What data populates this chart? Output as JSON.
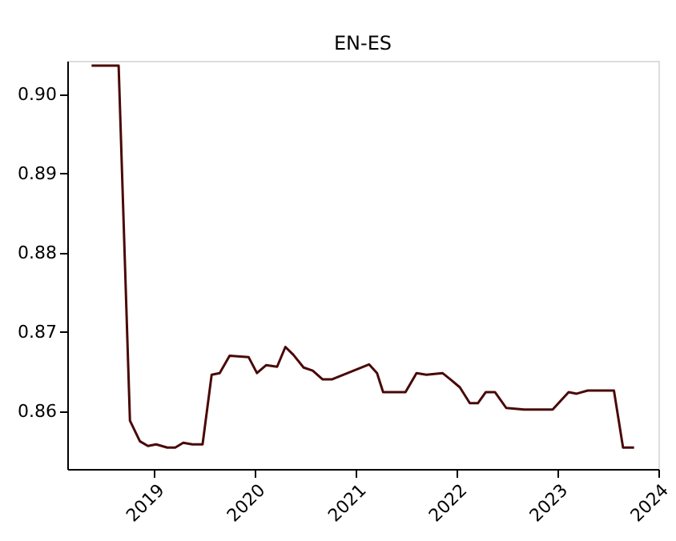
{
  "chart_data": {
    "type": "line",
    "title": "EN-ES",
    "x": [
      "2018-05-19",
      "2018-08-25",
      "2018-10-05",
      "2018-11-10",
      "2018-12-09",
      "2019-01-08",
      "2019-02-17",
      "2019-03-18",
      "2019-04-16",
      "2019-05-19",
      "2019-06-25",
      "2019-07-28",
      "2019-08-26",
      "2019-10-01",
      "2019-12-09",
      "2020-01-08",
      "2020-02-10",
      "2020-03-21",
      "2020-04-20",
      "2020-05-19",
      "2020-06-25",
      "2020-07-28",
      "2020-09-02",
      "2020-10-05",
      "2021-02-17",
      "2021-03-18",
      "2021-04-09",
      "2021-06-29",
      "2021-08-08",
      "2021-09-13",
      "2021-11-10",
      "2021-12-09",
      "2022-01-12",
      "2022-02-17",
      "2022-03-18",
      "2022-04-16",
      "2022-05-19",
      "2022-06-29",
      "2022-09-02",
      "2022-12-14",
      "2023-02-10",
      "2023-03-11",
      "2023-04-20",
      "2023-07-24",
      "2023-08-26",
      "2023-10-05"
    ],
    "series": [
      {
        "color": "#4a0808",
        "values": [
          0.9036,
          0.9036,
          0.8588,
          0.8562,
          0.8556,
          0.8558,
          0.8554,
          0.8554,
          0.856,
          0.8558,
          0.8558,
          0.8646,
          0.8648,
          0.867,
          0.8668,
          0.8648,
          0.8658,
          0.8656,
          0.8681,
          0.8671,
          0.8655,
          0.8651,
          0.864,
          0.864,
          0.8659,
          0.8648,
          0.8624,
          0.8624,
          0.8648,
          0.8646,
          0.8648,
          0.864,
          0.863,
          0.861,
          0.861,
          0.8624,
          0.8624,
          0.8604,
          0.8602,
          0.8602,
          0.8624,
          0.8622,
          0.8626,
          0.8626,
          0.8554,
          0.8554
        ]
      }
    ],
    "xlim": [
      "2018-02-20",
      "2024-01-01"
    ],
    "xticks": [
      "2019",
      "2020",
      "2021",
      "2022",
      "2023",
      "2024"
    ],
    "ylim": [
      0.8527,
      0.9042
    ],
    "yticks": [
      0.86,
      0.87,
      0.88,
      0.89,
      {
        "value": 0.9,
        "label": "0.90"
      }
    ],
    "grid": false,
    "line_style": "solid",
    "marker": "none"
  }
}
